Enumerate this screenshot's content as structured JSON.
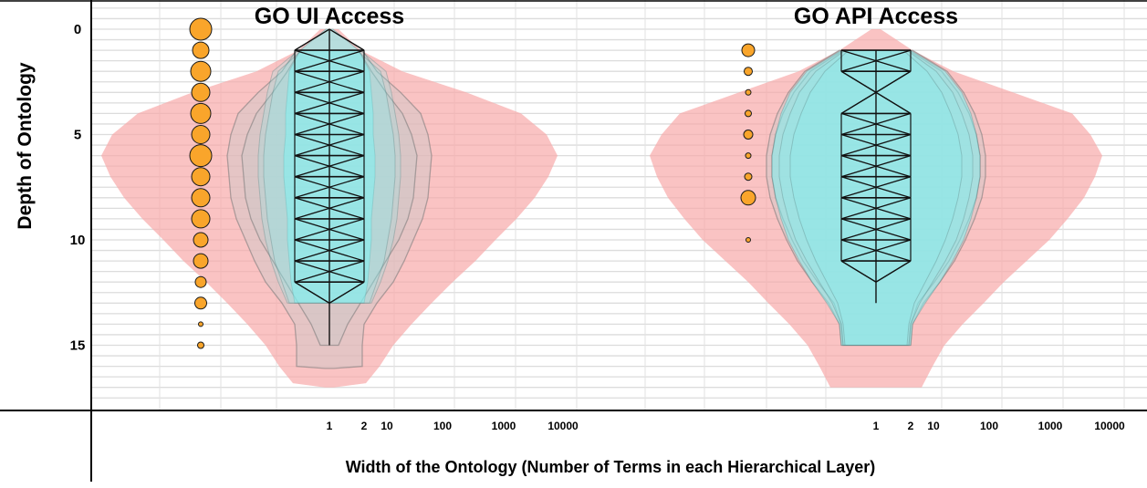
{
  "chart_data": {
    "type": "violin",
    "y_axis_label": "Depth of Ontology",
    "x_axis_label": "Width of the Ontology (Number of Terms in each Hierarchical Layer)",
    "y_ticks": [
      "0",
      "5",
      "10",
      "15"
    ],
    "y_range": [
      0,
      17
    ],
    "x_scale": "log",
    "x_ticks": [
      "1",
      "2",
      "10",
      "100",
      "1000",
      "10000"
    ],
    "grid": true,
    "colors": {
      "outer_envelope": "#f7a7a7",
      "middle_envelope": "#c8c8c8",
      "inner_fill": "#7ff2f2",
      "bubble": "#f9a52b",
      "bubble_stroke": "#1a1a1a"
    },
    "panels": [
      {
        "title": "GO UI Access",
        "max_depth": 15,
        "bubble_sizes": [
          {
            "depth": 0,
            "size": 12
          },
          {
            "depth": 1,
            "size": 9
          },
          {
            "depth": 2,
            "size": 11
          },
          {
            "depth": 3,
            "size": 10
          },
          {
            "depth": 4,
            "size": 11
          },
          {
            "depth": 5,
            "size": 10
          },
          {
            "depth": 6,
            "size": 12
          },
          {
            "depth": 7,
            "size": 10
          },
          {
            "depth": 8,
            "size": 10
          },
          {
            "depth": 9,
            "size": 10
          },
          {
            "depth": 10,
            "size": 8
          },
          {
            "depth": 11,
            "size": 8
          },
          {
            "depth": 12,
            "size": 6
          },
          {
            "depth": 13,
            "size": 6.5
          },
          {
            "depth": 14,
            "size": 2.5
          },
          {
            "depth": 15,
            "size": 3.5
          }
        ]
      },
      {
        "title": "GO API Access",
        "max_depth": 15,
        "bubble_sizes": [
          {
            "depth": 1,
            "size": 7
          },
          {
            "depth": 2,
            "size": 4.5
          },
          {
            "depth": 3,
            "size": 3
          },
          {
            "depth": 4,
            "size": 3.5
          },
          {
            "depth": 5,
            "size": 5
          },
          {
            "depth": 6,
            "size": 3
          },
          {
            "depth": 7,
            "size": 4
          },
          {
            "depth": 8,
            "size": 8
          },
          {
            "depth": 10,
            "size": 2.5
          }
        ]
      }
    ]
  }
}
